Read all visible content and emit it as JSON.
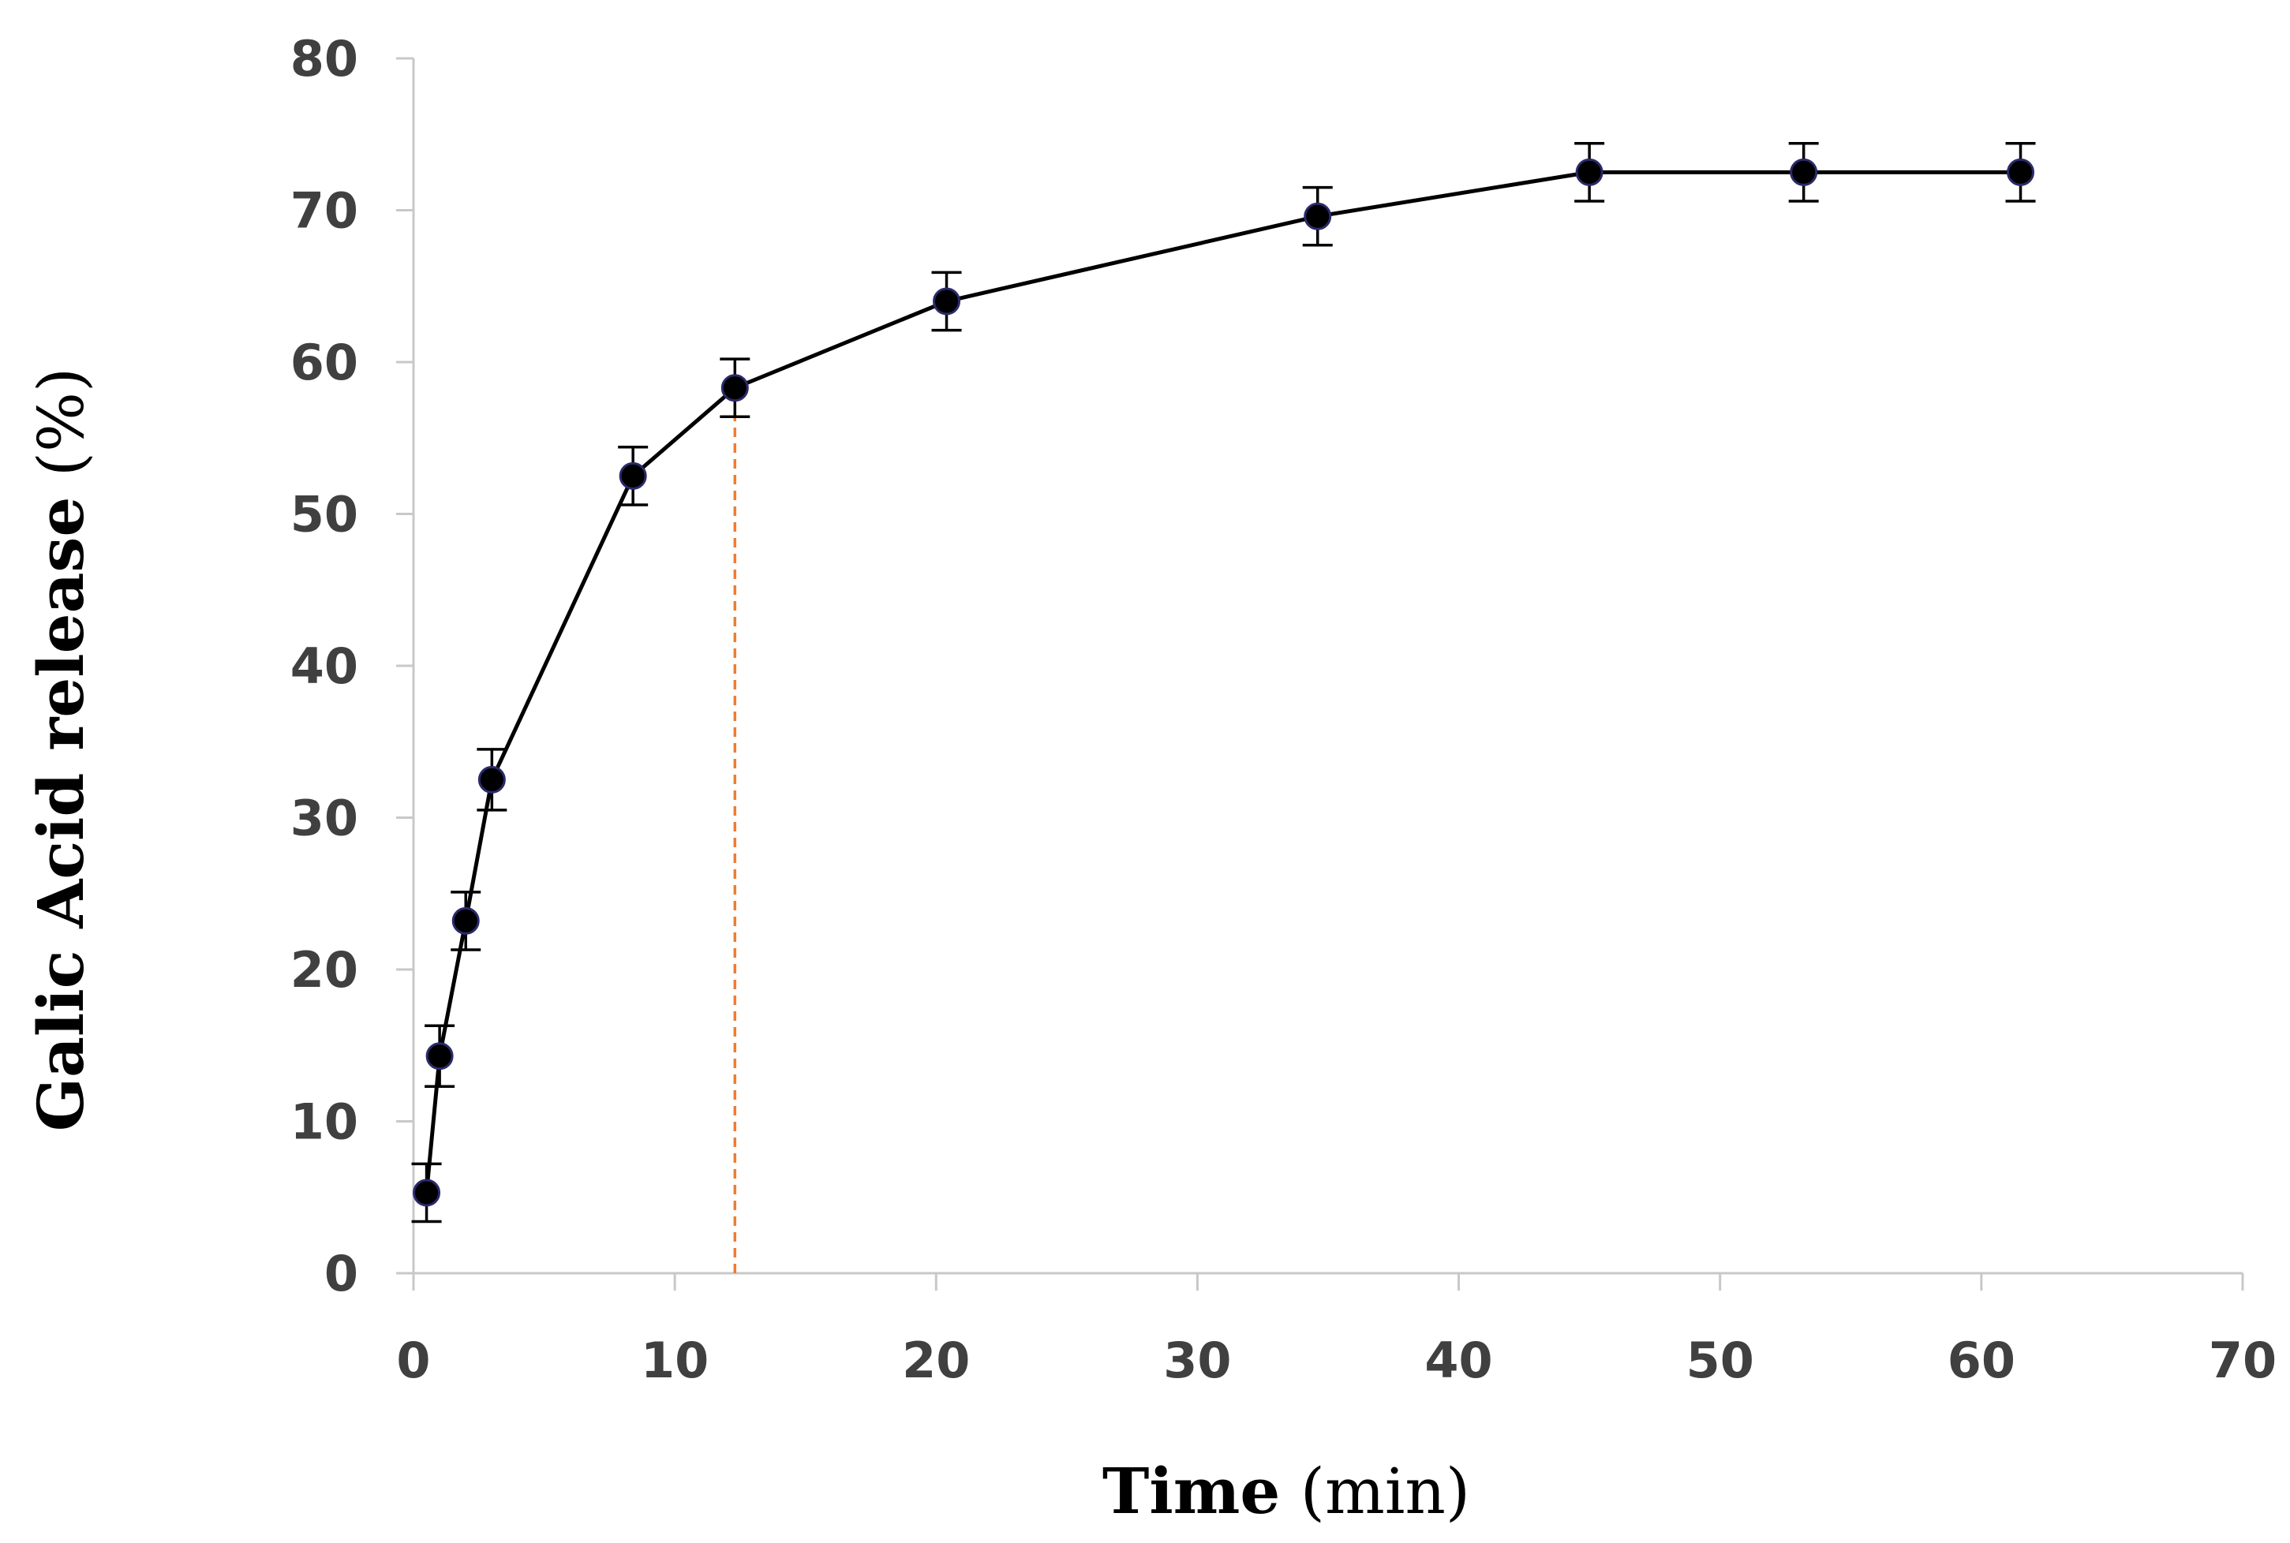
{
  "chart_data": {
    "type": "line",
    "title": "",
    "xlabel_bold": "Time",
    "xlabel_rest": "(min)",
    "ylabel_bold": "Galic  Acid release",
    "ylabel_rest": "(%)",
    "xlim": [
      0,
      70
    ],
    "ylim": [
      0,
      80
    ],
    "xticks": [
      0,
      10,
      20,
      30,
      40,
      50,
      60,
      70
    ],
    "yticks": [
      0,
      10,
      20,
      30,
      40,
      50,
      60,
      70,
      80
    ],
    "grid": false,
    "series": [
      {
        "name": "Galic Acid release",
        "color": "#000000",
        "points": [
          {
            "x": 0.5,
            "y": 5.3,
            "err": 1.9
          },
          {
            "x": 1.0,
            "y": 14.3,
            "err": 2.0
          },
          {
            "x": 2.0,
            "y": 23.2,
            "err": 1.9
          },
          {
            "x": 3.0,
            "y": 32.5,
            "err": 2.0
          },
          {
            "x": 8.4,
            "y": 52.5,
            "err": 1.9
          },
          {
            "x": 12.3,
            "y": 58.3,
            "err": 1.9
          },
          {
            "x": 20.4,
            "y": 64.0,
            "err": 1.9
          },
          {
            "x": 34.6,
            "y": 69.6,
            "err": 1.9
          },
          {
            "x": 45.0,
            "y": 72.5,
            "err": 1.9
          },
          {
            "x": 53.2,
            "y": 72.5,
            "err": 1.9
          },
          {
            "x": 61.5,
            "y": 72.5,
            "err": 1.9
          }
        ]
      }
    ],
    "reference_line": {
      "x": 12.3,
      "y_from": 0,
      "y_to": 58.3,
      "color": "#ed7d31",
      "style": "dashed"
    }
  }
}
